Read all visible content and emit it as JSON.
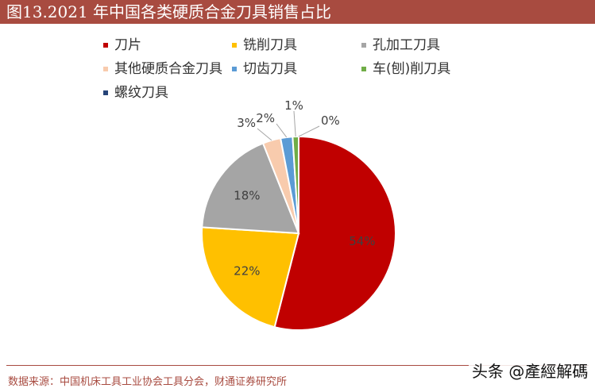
{
  "title": "图13.2021 年中国各类硬质合金刀具销售占比",
  "source": "数据来源：中国机床工具工业协会工具分会，财通证券研究所",
  "watermark": "头条 @產經解碼",
  "chart_data": {
    "type": "pie",
    "title": "",
    "legend_position": "top",
    "slices": [
      {
        "name": "刀片",
        "value": 54,
        "label": "54%",
        "color": "#c00000"
      },
      {
        "name": "铣削刀具",
        "value": 22,
        "label": "22%",
        "color": "#ffc000"
      },
      {
        "name": "孔加工刀具",
        "value": 18,
        "label": "18%",
        "color": "#a5a5a5"
      },
      {
        "name": "其他硬质合金刀具",
        "value": 3,
        "label": "3%",
        "color": "#f8cbad"
      },
      {
        "name": "切齿刀具",
        "value": 2,
        "label": "2%",
        "color": "#5b9bd5"
      },
      {
        "name": "车(刨)削刀具",
        "value": 1,
        "label": "1%",
        "color": "#70ad47"
      },
      {
        "name": "螺纹刀具",
        "value": 0,
        "label": "0%",
        "color": "#264478"
      }
    ]
  }
}
